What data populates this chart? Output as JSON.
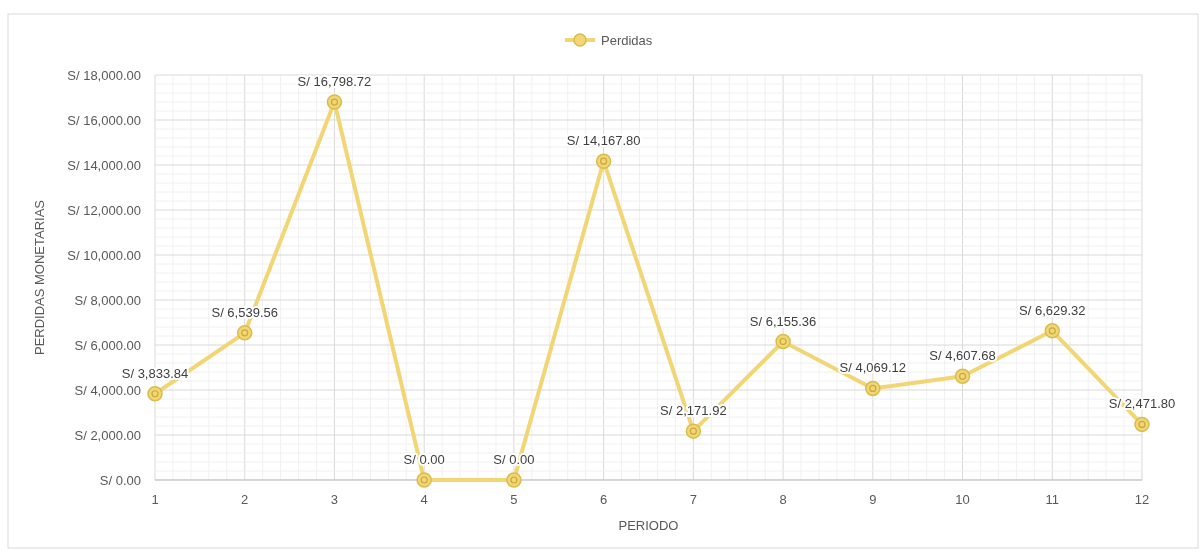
{
  "chart_data": {
    "type": "line",
    "xlabel": "PERIODO",
    "ylabel": "PERDIDAS MONETARIAS",
    "x": [
      1,
      2,
      3,
      4,
      5,
      6,
      7,
      8,
      9,
      10,
      11,
      12
    ],
    "series": [
      {
        "name": "Perdidas",
        "color": "#f2d675",
        "values": [
          3833.84,
          6539.56,
          16798.72,
          0,
          0,
          14167.8,
          2171.92,
          6155.36,
          4069.12,
          4607.68,
          6629.32,
          2471.8
        ],
        "value_labels": [
          "S/ 3,833.84",
          "S/ 6,539.56",
          "S/ 16,798.72",
          "S/ 0.00",
          "S/ 0.00",
          "S/ 14,167.80",
          "S/ 2,171.92",
          "S/ 6,155.36",
          "S/ 4,069.12",
          "S/ 4,607.68",
          "S/ 6,629.32",
          "S/ 2,471.80"
        ]
      }
    ],
    "xlim": [
      1,
      12
    ],
    "xticks": [
      1,
      2,
      3,
      4,
      5,
      6,
      7,
      8,
      9,
      10,
      11,
      12
    ],
    "ylim": [
      0,
      18000
    ],
    "yticks": [
      {
        "value": 0,
        "label": "S/ 0.00"
      },
      {
        "value": 2000,
        "label": "S/ 2,000.00"
      },
      {
        "value": 4000,
        "label": "S/ 4,000.00"
      },
      {
        "value": 6000,
        "label": "S/ 6,000.00"
      },
      {
        "value": 8000,
        "label": "S/ 8,000.00"
      },
      {
        "value": 10000,
        "label": "S/ 10,000.00"
      },
      {
        "value": 12000,
        "label": "S/ 12,000.00"
      },
      {
        "value": 14000,
        "label": "S/ 14,000.00"
      },
      {
        "value": 16000,
        "label": "S/ 16,000.00"
      },
      {
        "value": 18000,
        "label": "S/ 18,000.00"
      }
    ],
    "grid": true,
    "legend": "top",
    "marker": "circle",
    "line_style": "solid"
  }
}
